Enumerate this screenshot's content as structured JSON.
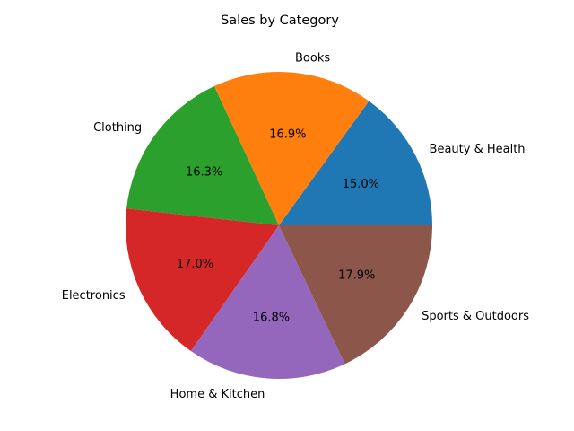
{
  "chart_data": {
    "type": "pie",
    "title": "Sales by Category",
    "categories": [
      "Beauty & Health",
      "Books",
      "Clothing",
      "Electronics",
      "Home & Kitchen",
      "Sports & Outdoors"
    ],
    "values": [
      15.0,
      16.9,
      16.3,
      17.0,
      16.8,
      17.9
    ],
    "value_labels": [
      "15.0%",
      "16.9%",
      "16.3%",
      "17.0%",
      "16.8%",
      "17.9%"
    ],
    "colors": [
      "#1f77b4",
      "#ff7f0e",
      "#2ca02c",
      "#d62728",
      "#9467bd",
      "#8c564b"
    ],
    "start_angle_deg": 0,
    "direction": "counterclockwise",
    "legend": "none"
  }
}
